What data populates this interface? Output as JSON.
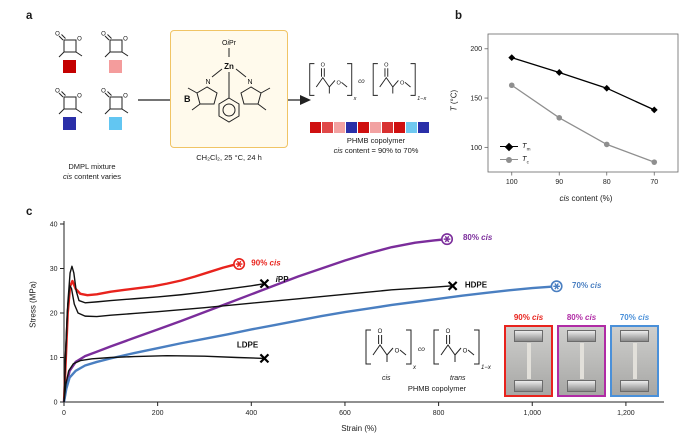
{
  "structure_labels": {
    "o": "O",
    "co": "co",
    "x": "x",
    "one_minus_x": "1−x"
  },
  "panels": {
    "a": {
      "label": "a",
      "monomers": {
        "colors": [
          "#c40000",
          "#f49c9c",
          "#2a2fa8",
          "#62c6f2"
        ],
        "caption_line1": "DMPL mixture",
        "caption_italic": "cis",
        "caption_rest": " content varies"
      },
      "catalyst": {
        "top_label_o": "O",
        "top_label_i": "i",
        "top_label_pr": "Pr",
        "metal": "Zn",
        "n": "N",
        "box_label": "B",
        "conditions": "CH₂Cl₂, 25 °C, 24 h",
        "box_bg": "#fffaec",
        "box_border": "#f0c465"
      },
      "product": {
        "sequence_colors": [
          "#cf1010",
          "#e04848",
          "#f2a2a2",
          "#2a2fa8",
          "#cf1010",
          "#f2a2a2",
          "#d83030",
          "#cf1010",
          "#6fc8f0",
          "#2a2fa8"
        ],
        "name": "PHMB copolymer",
        "cis_italic": "cis",
        "cis_rest": " content = 90% to 70%"
      }
    },
    "b": {
      "label": "b",
      "ylabel_italic": "T",
      "ylabel_rest": " (°C)",
      "xlabel_italic": "cis",
      "xlabel_rest": " content (%)",
      "legend": [
        {
          "main": "T",
          "sub": "m",
          "marker": "diamond",
          "color": "#000000"
        },
        {
          "main": "T",
          "sub": "c",
          "marker": "circle",
          "color": "#8f8f8f"
        }
      ]
    },
    "c": {
      "label": "c",
      "ylabel": "Stress (MPa)",
      "xlabel": "Strain (%)",
      "inset_structure": {
        "unit1_label": "cis",
        "unit2_label": "trans",
        "caption": "PHMB copolymer"
      },
      "insets": [
        {
          "label_prefix": "90% ",
          "label_italic": "cis",
          "color": "#e8231d"
        },
        {
          "label_prefix": "80% ",
          "label_italic": "cis",
          "color": "#b02ba5"
        },
        {
          "label_prefix": "70% ",
          "label_italic": "cis",
          "color": "#4a90d9"
        }
      ]
    }
  },
  "chart_data": [
    {
      "id": "thermal_properties",
      "type": "line",
      "xlabel": "cis content (%)",
      "ylabel": "T (°C)",
      "x_categories": [
        100,
        90,
        80,
        70
      ],
      "ylim": [
        75,
        215
      ],
      "yticks": [
        100,
        150,
        200
      ],
      "legend_position": "lower-left",
      "series": [
        {
          "name": "Tm",
          "color": "#000000",
          "marker": "diamond",
          "values": [
            191,
            176,
            160,
            138
          ]
        },
        {
          "name": "Tc",
          "color": "#8f8f8f",
          "marker": "circle",
          "values": [
            163,
            130,
            103,
            85
          ]
        }
      ]
    },
    {
      "id": "stress_strain",
      "type": "line",
      "xlabel": "Strain (%)",
      "ylabel": "Stress (MPa)",
      "xlim": [
        0,
        1260
      ],
      "ylim": [
        0,
        40
      ],
      "xticks": [
        0,
        200,
        400,
        600,
        800,
        1000,
        1200
      ],
      "xtick_labels": [
        "0",
        "200",
        "400",
        "600",
        "800",
        "1,000",
        "1,200"
      ],
      "yticks": [
        0,
        10,
        20,
        30,
        40
      ],
      "series": [
        {
          "name": "90-cis",
          "color": "#e8231d",
          "width": 2.4,
          "end_marker": "star",
          "label_parts": [
            {
              "t": "90% "
            },
            {
              "t": "cis",
              "i": 1
            }
          ],
          "label_at": [
            400,
            31.3
          ],
          "label_anchor": "start",
          "points": [
            [
              0,
              0
            ],
            [
              4,
              10
            ],
            [
              8,
              20
            ],
            [
              13,
              26
            ],
            [
              18,
              27.2
            ],
            [
              25,
              25.4
            ],
            [
              35,
              24.3
            ],
            [
              50,
              24
            ],
            [
              70,
              24.2
            ],
            [
              100,
              24.8
            ],
            [
              130,
              25.2
            ],
            [
              160,
              25.6
            ],
            [
              190,
              26
            ],
            [
              220,
              26.6
            ],
            [
              250,
              27.3
            ],
            [
              280,
              28.2
            ],
            [
              310,
              29.2
            ],
            [
              340,
              30.2
            ],
            [
              362,
              30.8
            ],
            [
              374,
              31
            ]
          ]
        },
        {
          "name": "80-cis",
          "color": "#7b2d9b",
          "width": 2.4,
          "end_marker": "star",
          "label_parts": [
            {
              "t": "80% "
            },
            {
              "t": "cis",
              "i": 1
            }
          ],
          "label_at": [
            852,
            37
          ],
          "label_anchor": "start",
          "points": [
            [
              0,
              0
            ],
            [
              5,
              4
            ],
            [
              12,
              7
            ],
            [
              25,
              9
            ],
            [
              45,
              10.3
            ],
            [
              70,
              11.3
            ],
            [
              100,
              12.5
            ],
            [
              150,
              14.4
            ],
            [
              200,
              16.3
            ],
            [
              250,
              18.2
            ],
            [
              300,
              20.2
            ],
            [
              350,
              22.2
            ],
            [
              400,
              24.2
            ],
            [
              450,
              26.2
            ],
            [
              500,
              28.2
            ],
            [
              550,
              30
            ],
            [
              600,
              31.8
            ],
            [
              650,
              33.4
            ],
            [
              700,
              34.8
            ],
            [
              750,
              35.8
            ],
            [
              790,
              36.3
            ],
            [
              818,
              36.6
            ]
          ]
        },
        {
          "name": "70-cis",
          "color": "#4a7fc1",
          "width": 2.4,
          "end_marker": "star",
          "label_parts": [
            {
              "t": "70% "
            },
            {
              "t": "cis",
              "i": 1
            }
          ],
          "label_at": [
            1085,
            26.2
          ],
          "label_anchor": "start",
          "points": [
            [
              0,
              0
            ],
            [
              5,
              3
            ],
            [
              12,
              5.5
            ],
            [
              25,
              7
            ],
            [
              45,
              8.2
            ],
            [
              70,
              9
            ],
            [
              100,
              9.8
            ],
            [
              150,
              11
            ],
            [
              200,
              12.1
            ],
            [
              250,
              13.2
            ],
            [
              300,
              14.2
            ],
            [
              350,
              15.2
            ],
            [
              400,
              16.3
            ],
            [
              450,
              17.3
            ],
            [
              500,
              18.3
            ],
            [
              550,
              19.3
            ],
            [
              600,
              20.2
            ],
            [
              650,
              21
            ],
            [
              700,
              21.8
            ],
            [
              750,
              22.5
            ],
            [
              800,
              23.2
            ],
            [
              850,
              23.9
            ],
            [
              900,
              24.5
            ],
            [
              950,
              25.1
            ],
            [
              1000,
              25.6
            ],
            [
              1052,
              26
            ]
          ]
        },
        {
          "name": "iPP",
          "color": "#111111",
          "width": 1.4,
          "end_marker": "x",
          "label_parts": [
            {
              "t": "i",
              "i": 1
            },
            {
              "t": "PP"
            }
          ],
          "label_at": [
            452,
            27.6
          ],
          "label_anchor": "start",
          "points": [
            [
              0,
              0
            ],
            [
              4,
              12
            ],
            [
              8,
              22
            ],
            [
              13,
              29
            ],
            [
              17,
              30.5
            ],
            [
              21,
              29
            ],
            [
              26,
              25
            ],
            [
              32,
              22.8
            ],
            [
              45,
              22.3
            ],
            [
              70,
              22.5
            ],
            [
              100,
              22.8
            ],
            [
              150,
              23.2
            ],
            [
              200,
              23.6
            ],
            [
              250,
              24.1
            ],
            [
              300,
              24.7
            ],
            [
              350,
              25.4
            ],
            [
              400,
              26.1
            ],
            [
              428,
              26.6
            ]
          ]
        },
        {
          "name": "HDPE",
          "color": "#111111",
          "width": 1.4,
          "end_marker": "x",
          "label_parts": [
            {
              "t": "HDPE"
            }
          ],
          "label_at": [
            856,
            26.3
          ],
          "label_anchor": "start",
          "points": [
            [
              0,
              0
            ],
            [
              3,
              10
            ],
            [
              7,
              20
            ],
            [
              12,
              26.2
            ],
            [
              16,
              25.5
            ],
            [
              22,
              22
            ],
            [
              30,
              20
            ],
            [
              45,
              19.3
            ],
            [
              70,
              19.2
            ],
            [
              100,
              19.5
            ],
            [
              150,
              19.9
            ],
            [
              200,
              20.3
            ],
            [
              300,
              21.2
            ],
            [
              400,
              22.2
            ],
            [
              500,
              23.2
            ],
            [
              600,
              24.2
            ],
            [
              700,
              25.2
            ],
            [
              790,
              25.8
            ],
            [
              830,
              26.1
            ]
          ]
        },
        {
          "name": "LDPE",
          "color": "#111111",
          "width": 1.4,
          "end_marker": "x",
          "label_parts": [
            {
              "t": "LDPE"
            }
          ],
          "label_at": [
            392,
            12.8
          ],
          "label_anchor": "middle",
          "points": [
            [
              0,
              0
            ],
            [
              4,
              4
            ],
            [
              10,
              7
            ],
            [
              20,
              8.6
            ],
            [
              35,
              9.3
            ],
            [
              60,
              9.7
            ],
            [
              100,
              10
            ],
            [
              150,
              10.2
            ],
            [
              220,
              10.4
            ],
            [
              300,
              10.3
            ],
            [
              370,
              10
            ],
            [
              428,
              9.8
            ]
          ]
        }
      ]
    }
  ]
}
